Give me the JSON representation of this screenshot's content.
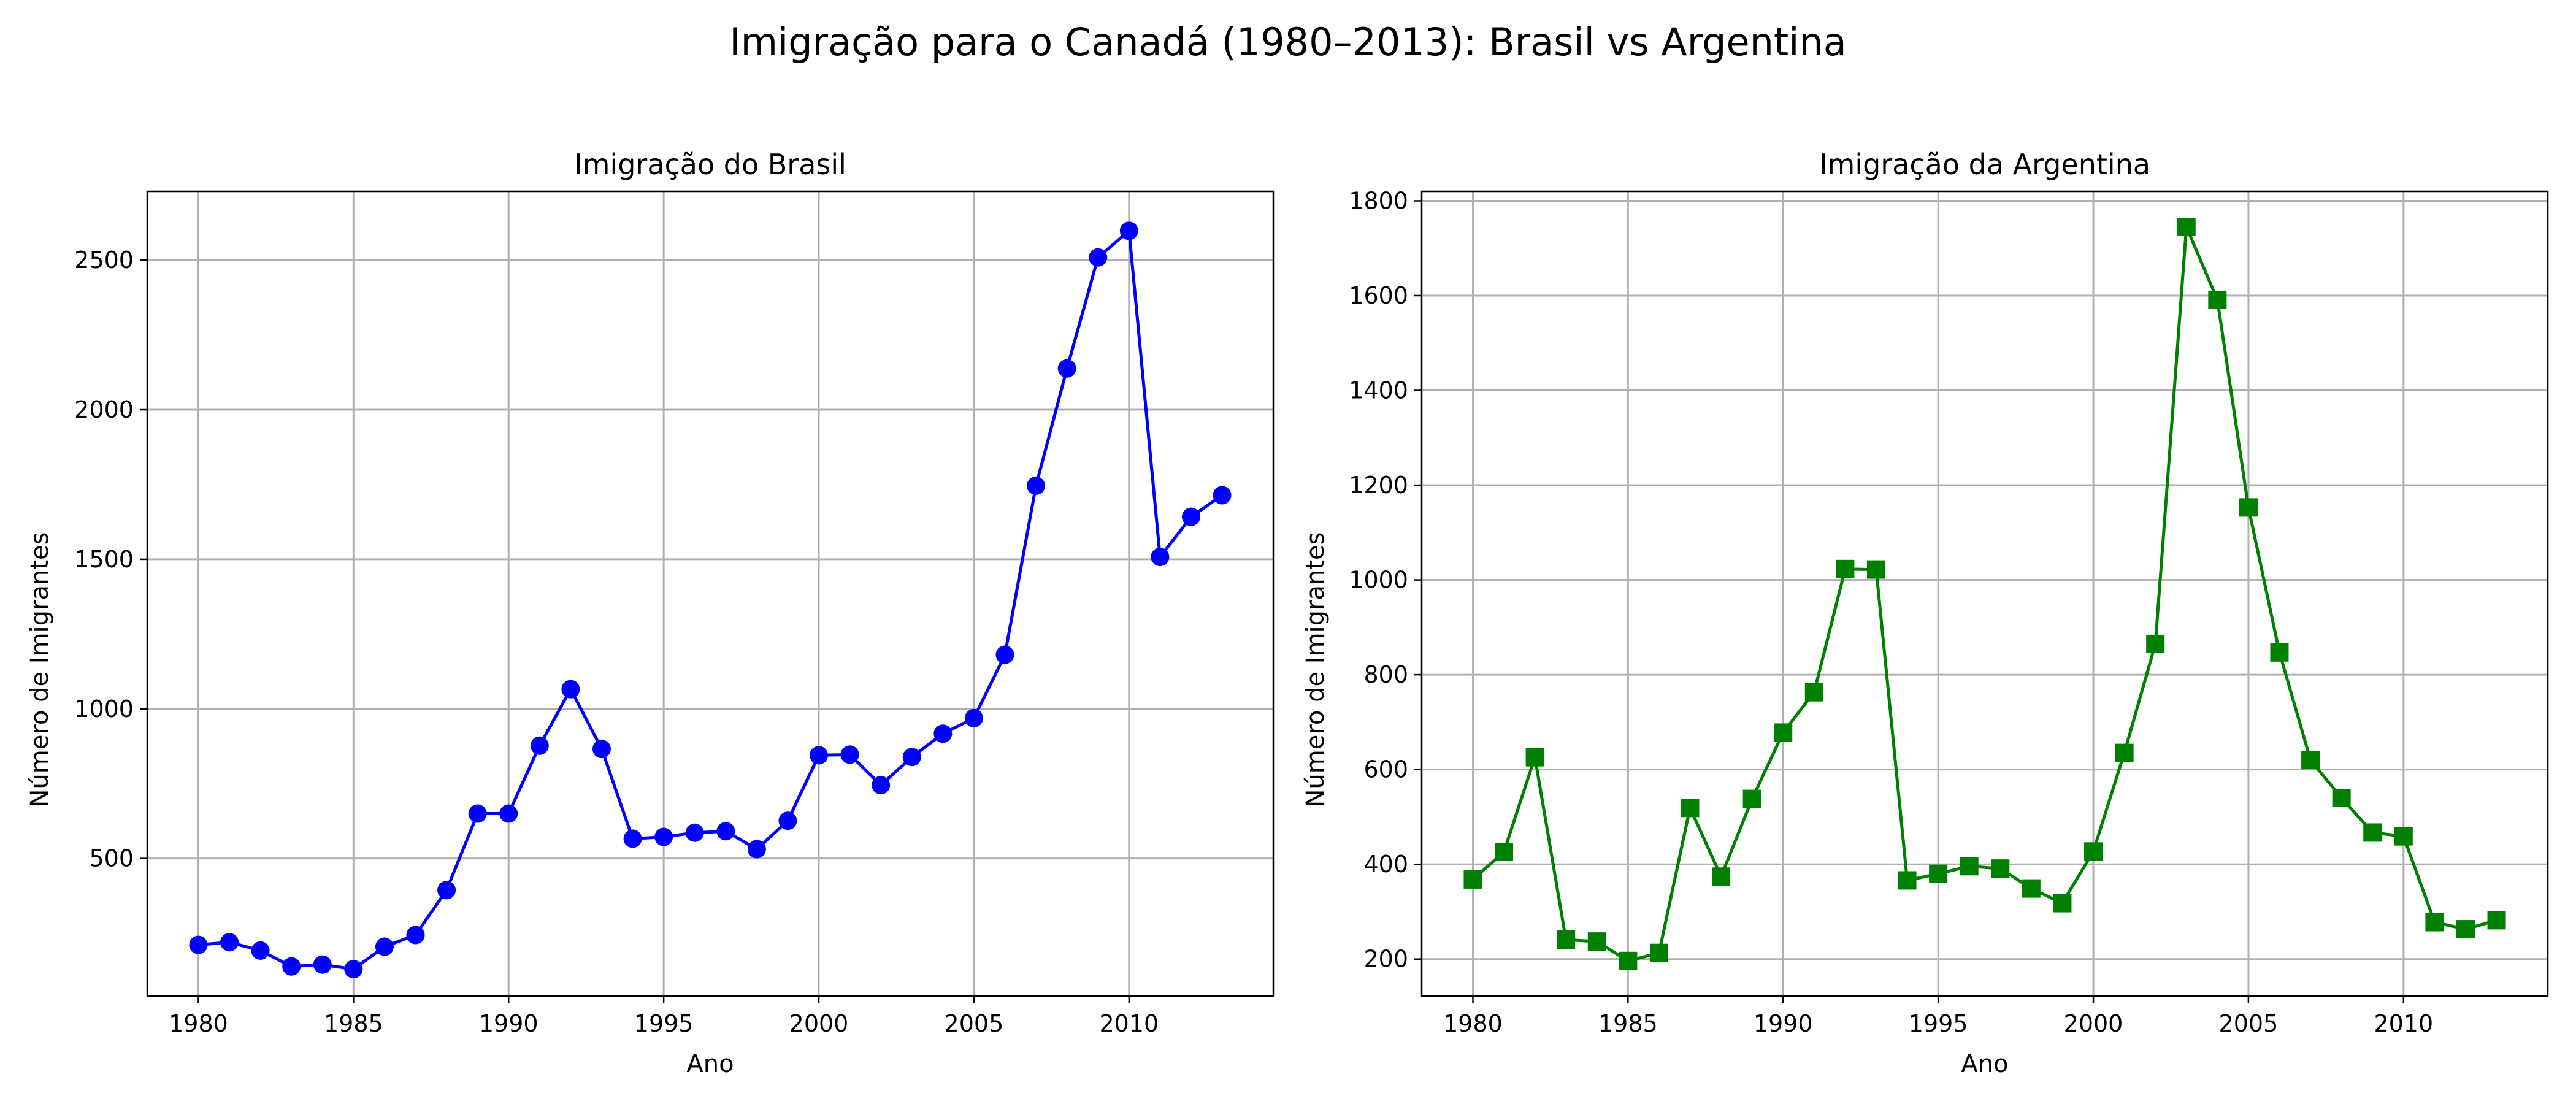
{
  "figure": {
    "title": "Imigração para o Canadá (1980–2013): Brasil vs Argentina"
  },
  "chart_data": [
    {
      "type": "line",
      "title": "Imigração do Brasil",
      "xlabel": "Ano",
      "ylabel": "Número de Imigrantes",
      "grid": true,
      "marker": "circle",
      "color": "#0000ff",
      "xlim": [
        1978.35,
        2014.65
      ],
      "ylim": [
        40,
        2730
      ],
      "xticks": [
        1980,
        1985,
        1990,
        1995,
        2000,
        2005,
        2010
      ],
      "yticks": [
        500,
        1000,
        1500,
        2000,
        2500
      ],
      "series": [
        {
          "name": "Brasil",
          "x": [
            1980,
            1981,
            1982,
            1983,
            1984,
            1985,
            1986,
            1987,
            1988,
            1989,
            1990,
            1991,
            1992,
            1993,
            1994,
            1995,
            1996,
            1997,
            1998,
            1999,
            2000,
            2001,
            2002,
            2003,
            2004,
            2005,
            2006,
            2007,
            2008,
            2009,
            2010,
            2011,
            2012,
            2013
          ],
          "values": [
            211,
            220,
            192,
            139,
            145,
            130,
            205,
            244,
            394,
            650,
            650,
            877,
            1066,
            866,
            566,
            572,
            586,
            591,
            531,
            626,
            845,
            847,
            745,
            839,
            917,
            969,
            1181,
            1746,
            2138,
            2509,
            2598,
            1508,
            1642,
            1714
          ]
        }
      ]
    },
    {
      "type": "line",
      "title": "Imigração da Argentina",
      "xlabel": "Ano",
      "ylabel": "Número de Imigrantes",
      "grid": true,
      "marker": "square",
      "color": "#008000",
      "xlim": [
        1978.35,
        2014.65
      ],
      "ylim": [
        122,
        1820
      ],
      "xticks": [
        1980,
        1985,
        1990,
        1995,
        2000,
        2005,
        2010
      ],
      "yticks": [
        200,
        400,
        600,
        800,
        1000,
        1200,
        1400,
        1600,
        1800
      ],
      "series": [
        {
          "name": "Argentina",
          "x": [
            1980,
            1981,
            1982,
            1983,
            1984,
            1985,
            1986,
            1987,
            1988,
            1989,
            1990,
            1991,
            1992,
            1993,
            1994,
            1995,
            1996,
            1997,
            1998,
            1999,
            2000,
            2001,
            2002,
            2003,
            2004,
            2005,
            2006,
            2007,
            2008,
            2009,
            2010,
            2011,
            2012,
            2013
          ],
          "values": [
            368,
            426,
            626,
            241,
            237,
            196,
            213,
            519,
            374,
            538,
            678,
            763,
            1023,
            1022,
            366,
            380,
            396,
            391,
            349,
            318,
            427,
            635,
            865,
            1745,
            1591,
            1153,
            847,
            620,
            540,
            467,
            459,
            278,
            263,
            282
          ]
        }
      ]
    }
  ]
}
